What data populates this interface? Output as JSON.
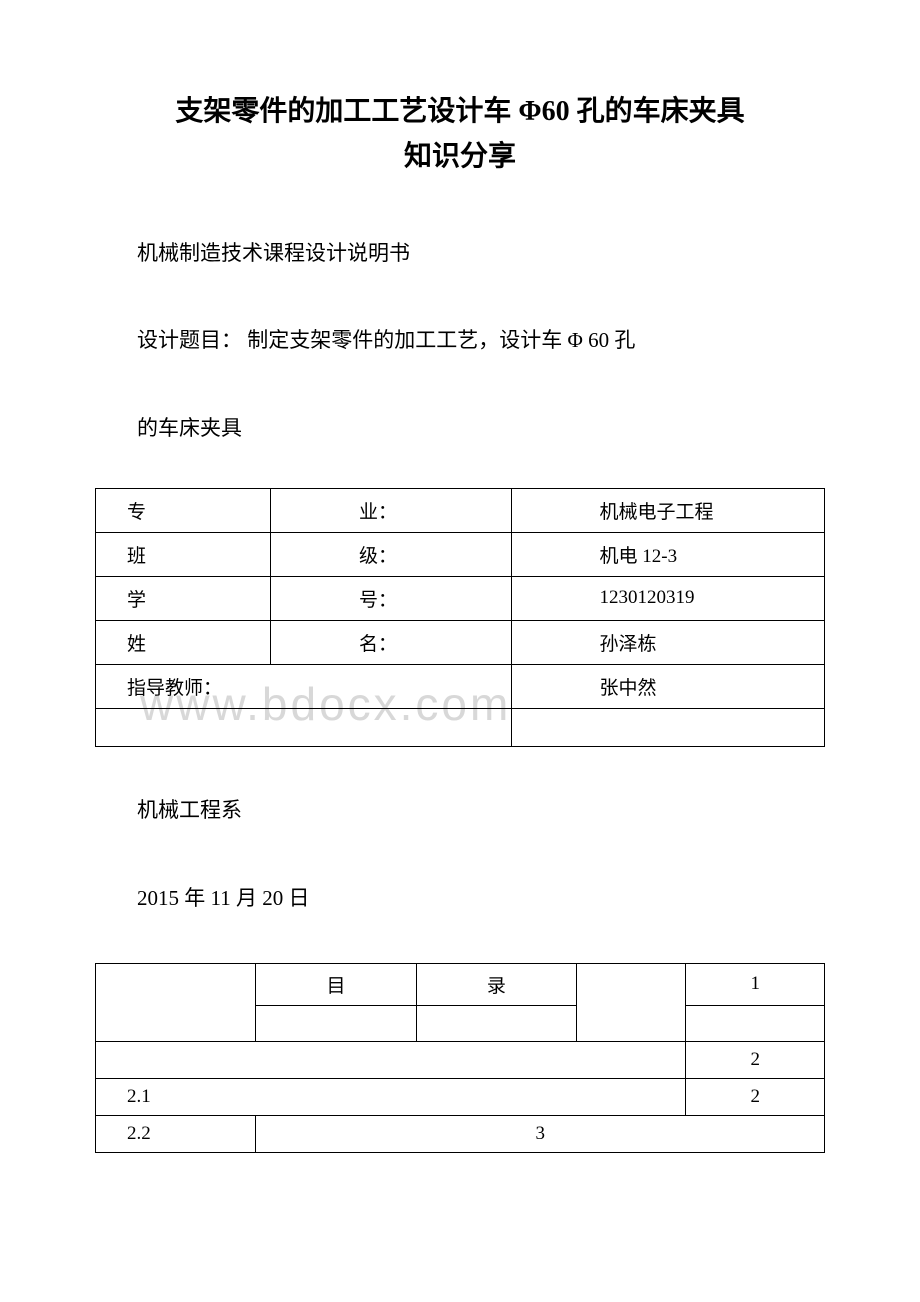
{
  "document": {
    "title_line1": "支架零件的加工工艺设计车 Φ60 孔的车床夹具",
    "title_line2": "知识分享",
    "subtitle": "机械制造技术课程设计说明书",
    "design_topic": "设计题目： 制定支架零件的加工工艺，设计车 Φ 60 孔",
    "fixture": "的车床夹具",
    "watermark": "www.bdocx.com",
    "info_table": {
      "rows": [
        {
          "label": "专",
          "suffix": "业：",
          "value": "机械电子工程"
        },
        {
          "label": "班",
          "suffix": "级：",
          "value": "机电 12-3"
        },
        {
          "label": "学",
          "suffix": "号：",
          "value": "1230120319"
        },
        {
          "label": "姓",
          "suffix": "名：",
          "value": "孙泽栋"
        },
        {
          "label_merged": "指导教师：",
          "value": "张中然"
        }
      ]
    },
    "department": "机械工程系",
    "date": "2015 年 11 月 20 日",
    "toc": {
      "header": {
        "c2": "目",
        "c3": "录",
        "c5": "1"
      },
      "rows": [
        {
          "c1": "",
          "c2": "",
          "c3": "",
          "c5": "2"
        },
        {
          "c1": "2.1",
          "c2": "",
          "c3": "",
          "c5": "2"
        },
        {
          "c1": "2.2",
          "c2": "3",
          "c3": "",
          "c5": ""
        }
      ]
    }
  }
}
